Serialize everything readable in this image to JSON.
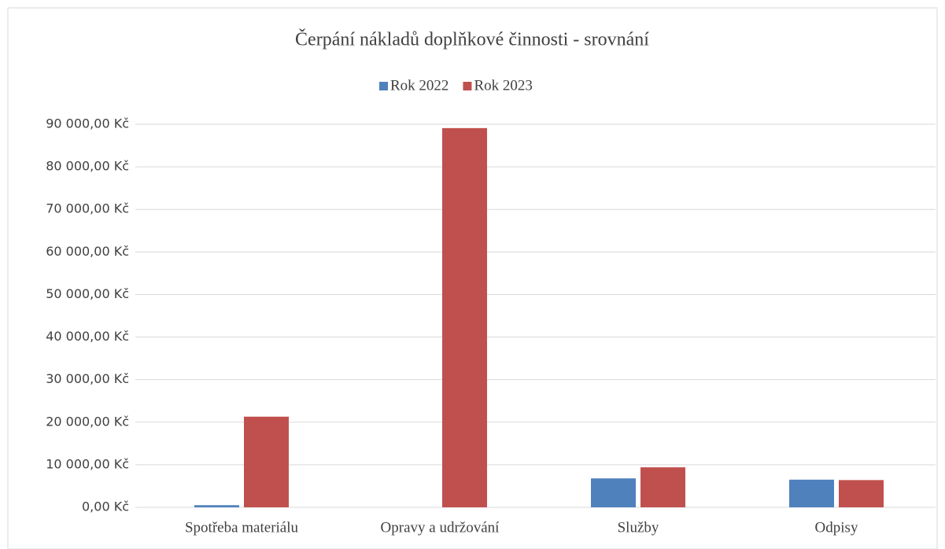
{
  "chart_data": {
    "type": "bar",
    "title": "Čerpání nákladů doplňkové činnosti - srovnání",
    "categories": [
      "Spotřeba materiálu",
      "Opravy a udržování",
      "Služby",
      "Odpisy"
    ],
    "series": [
      {
        "name": "Rok 2022",
        "color": "#4f81bd",
        "values": [
          500,
          0,
          6800,
          6500
        ]
      },
      {
        "name": "Rok 2023",
        "color": "#c0504d",
        "values": [
          21300,
          89100,
          9400,
          6400
        ]
      }
    ],
    "ylim": [
      0,
      90000
    ],
    "yticks": [
      {
        "value": 0,
        "label": "0,00 Kč"
      },
      {
        "value": 10000,
        "label": "10 000,00 Kč"
      },
      {
        "value": 20000,
        "label": "20 000,00 Kč"
      },
      {
        "value": 30000,
        "label": "30 000,00 Kč"
      },
      {
        "value": 40000,
        "label": "40 000,00 Kč"
      },
      {
        "value": 50000,
        "label": "50 000,00 Kč"
      },
      {
        "value": 60000,
        "label": "60 000,00 Kč"
      },
      {
        "value": 70000,
        "label": "70 000,00 Kč"
      },
      {
        "value": 80000,
        "label": "80 000,00 Kč"
      },
      {
        "value": 90000,
        "label": "90 000,00 Kč"
      }
    ],
    "grid": true,
    "legend": "top"
  }
}
